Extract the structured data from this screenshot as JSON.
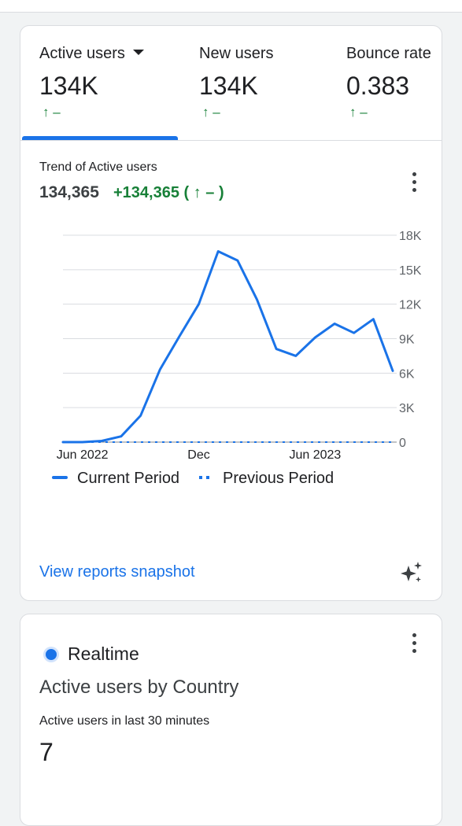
{
  "metrics": [
    {
      "label": "Active users",
      "value": "134K",
      "delta": "↑ –",
      "has_dropdown": true,
      "selected": true
    },
    {
      "label": "New users",
      "value": "134K",
      "delta": "↑ –"
    },
    {
      "label": "Bounce rate",
      "value": "0.383",
      "delta": "↑ –"
    }
  ],
  "trend": {
    "title": "Trend of Active users",
    "total": "134,365",
    "delta": "+134,365 ( ↑ – )"
  },
  "chart_data": {
    "type": "line",
    "title": "Trend of Active users",
    "x_tick_labels": [
      "Jun 2022",
      "Dec",
      "Jun 2023"
    ],
    "y_tick_labels": [
      "0",
      "3K",
      "6K",
      "9K",
      "12K",
      "15K",
      "18K"
    ],
    "ylim": [
      0,
      18000
    ],
    "grid": true,
    "legend_position": "bottom",
    "series": [
      {
        "name": "Current Period",
        "style": "solid",
        "color": "#1a73e8",
        "values": [
          0,
          0,
          100,
          500,
          2300,
          6300,
          9200,
          12000,
          16600,
          15800,
          12400,
          8100,
          7500,
          9100,
          10300,
          9500,
          10700,
          6200
        ]
      },
      {
        "name": "Previous Period",
        "style": "dashed",
        "color": "#1a73e8",
        "values": [
          0,
          0,
          0,
          0,
          0,
          0,
          0,
          0,
          0,
          0,
          0,
          0,
          0,
          0,
          0,
          0,
          0,
          0
        ]
      }
    ]
  },
  "links": {
    "view_reports": "View reports snapshot"
  },
  "icons": {
    "menu": "more-vert-icon",
    "sparkle": "sparkle-icon"
  },
  "realtime": {
    "label": "Realtime",
    "heading": "Active users by Country",
    "sub_label": "Active users in last 30 minutes",
    "value": "7"
  },
  "colors": {
    "accent": "#1a73e8",
    "positive": "#188038"
  }
}
